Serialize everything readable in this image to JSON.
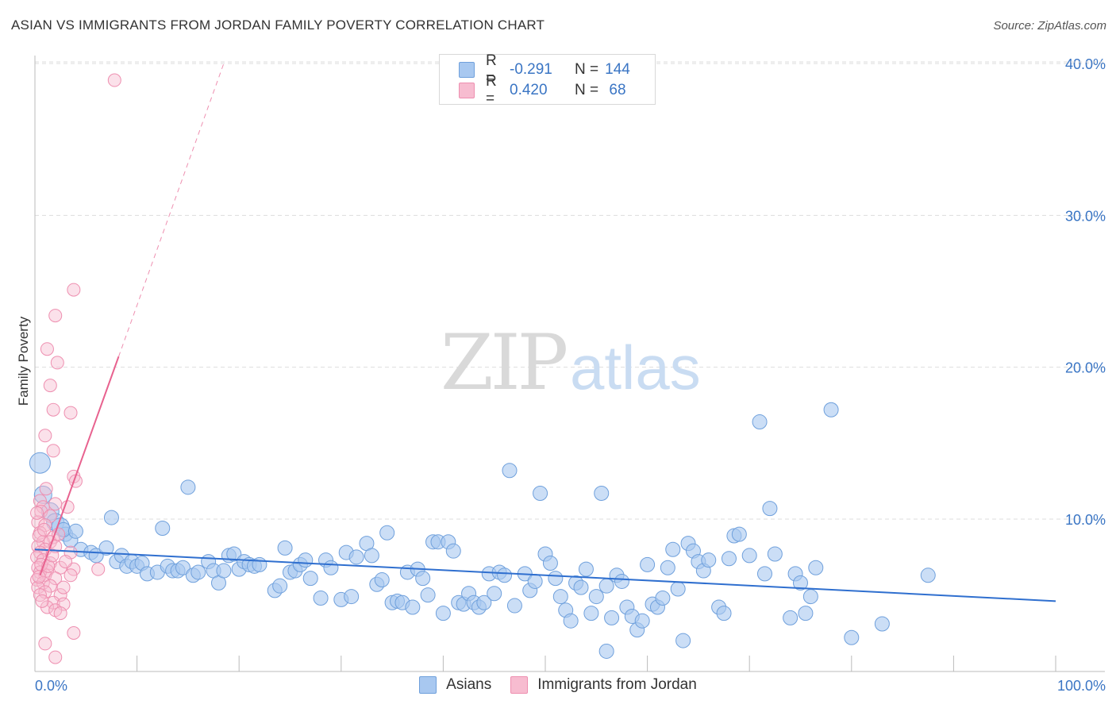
{
  "title": "ASIAN VS IMMIGRANTS FROM JORDAN FAMILY POVERTY CORRELATION CHART",
  "source": "Source: ZipAtlas.com",
  "watermark": {
    "zip": "ZIP",
    "atlas": "atlas"
  },
  "legend": {
    "rows": [
      {
        "r_label": "R =",
        "r_value": "-0.291",
        "n_label": "N =",
        "n_value": "144",
        "color": "#a8c8f0",
        "border": "#6fa0dc"
      },
      {
        "r_label": "R =",
        "r_value": "0.420",
        "n_label": "N =",
        "n_value": "68",
        "color": "#f7bcd0",
        "border": "#ee8fb0"
      }
    ]
  },
  "chart_data": {
    "type": "scatter",
    "title": "ASIAN VS IMMIGRANTS FROM JORDAN FAMILY POVERTY CORRELATION CHART",
    "xlabel": "",
    "ylabel": "Family Poverty",
    "xlim": [
      0,
      100
    ],
    "ylim": [
      0,
      42
    ],
    "x_tick_labels": [
      "0.0%",
      "100.0%"
    ],
    "y_ticks": [
      10,
      20,
      30,
      40
    ],
    "y_tick_labels": [
      "10.0%",
      "20.0%",
      "30.0%",
      "40.0%"
    ],
    "grid": "horizontal dashed",
    "legend_position": "top-center and bottom",
    "series": [
      {
        "name": "Asians",
        "color": "#6fa0dc",
        "fill": "#a8c8f0",
        "trend": {
          "x": [
            0,
            100
          ],
          "y": [
            8.0,
            4.6
          ]
        },
        "points": [
          [
            0.5,
            13.7
          ],
          [
            0.8,
            11.6
          ],
          [
            1.5,
            10.5
          ],
          [
            2.0,
            9.8
          ],
          [
            2.5,
            9.5
          ],
          [
            3.0,
            9.0
          ],
          [
            3.5,
            8.6
          ],
          [
            2.8,
            9.3
          ],
          [
            4.0,
            9.2
          ],
          [
            4.5,
            8.0
          ],
          [
            5.5,
            7.8
          ],
          [
            6.0,
            7.6
          ],
          [
            7.0,
            8.1
          ],
          [
            7.5,
            10.1
          ],
          [
            8.0,
            7.2
          ],
          [
            8.5,
            7.6
          ],
          [
            9.0,
            6.9
          ],
          [
            9.5,
            7.2
          ],
          [
            10.0,
            6.9
          ],
          [
            10.5,
            7.1
          ],
          [
            11.0,
            6.4
          ],
          [
            12.0,
            6.5
          ],
          [
            12.5,
            9.4
          ],
          [
            13.0,
            6.9
          ],
          [
            13.5,
            6.6
          ],
          [
            14.0,
            6.6
          ],
          [
            14.5,
            6.8
          ],
          [
            15.0,
            12.1
          ],
          [
            15.5,
            6.3
          ],
          [
            16.0,
            6.5
          ],
          [
            17.0,
            7.2
          ],
          [
            17.5,
            6.6
          ],
          [
            18.0,
            5.8
          ],
          [
            18.5,
            6.6
          ],
          [
            19.0,
            7.6
          ],
          [
            19.5,
            7.7
          ],
          [
            20.0,
            6.7
          ],
          [
            20.5,
            7.2
          ],
          [
            21.0,
            7.0
          ],
          [
            21.5,
            6.9
          ],
          [
            22.0,
            7.0
          ],
          [
            23.5,
            5.3
          ],
          [
            24.0,
            5.6
          ],
          [
            24.5,
            8.1
          ],
          [
            25.0,
            6.5
          ],
          [
            25.5,
            6.6
          ],
          [
            26.0,
            7.0
          ],
          [
            26.5,
            7.3
          ],
          [
            27.0,
            6.1
          ],
          [
            28.0,
            4.8
          ],
          [
            28.5,
            7.3
          ],
          [
            29.0,
            6.8
          ],
          [
            30.0,
            4.7
          ],
          [
            30.5,
            7.8
          ],
          [
            31.0,
            4.9
          ],
          [
            31.5,
            7.5
          ],
          [
            32.5,
            8.4
          ],
          [
            33.0,
            7.6
          ],
          [
            33.5,
            5.7
          ],
          [
            34.0,
            6.0
          ],
          [
            34.5,
            9.1
          ],
          [
            35.0,
            4.5
          ],
          [
            35.5,
            4.6
          ],
          [
            36.0,
            4.5
          ],
          [
            36.5,
            6.5
          ],
          [
            37.0,
            4.2
          ],
          [
            37.5,
            6.7
          ],
          [
            38.0,
            6.1
          ],
          [
            38.5,
            5.0
          ],
          [
            39.0,
            8.5
          ],
          [
            39.5,
            8.5
          ],
          [
            40.0,
            3.8
          ],
          [
            40.5,
            8.5
          ],
          [
            41.0,
            7.9
          ],
          [
            41.5,
            4.5
          ],
          [
            42.0,
            4.4
          ],
          [
            42.5,
            5.1
          ],
          [
            43.0,
            4.5
          ],
          [
            43.5,
            4.2
          ],
          [
            44.0,
            4.5
          ],
          [
            44.5,
            6.4
          ],
          [
            45.0,
            5.1
          ],
          [
            45.5,
            6.5
          ],
          [
            46.0,
            6.3
          ],
          [
            46.5,
            13.2
          ],
          [
            47.0,
            4.3
          ],
          [
            48.0,
            6.4
          ],
          [
            48.5,
            5.3
          ],
          [
            49.0,
            5.9
          ],
          [
            49.5,
            11.7
          ],
          [
            50.0,
            7.7
          ],
          [
            50.5,
            7.1
          ],
          [
            51.0,
            6.1
          ],
          [
            51.5,
            4.9
          ],
          [
            52.0,
            4.0
          ],
          [
            52.5,
            3.3
          ],
          [
            53.0,
            5.8
          ],
          [
            53.5,
            5.5
          ],
          [
            54.0,
            6.7
          ],
          [
            54.5,
            3.8
          ],
          [
            55.0,
            4.9
          ],
          [
            55.5,
            11.7
          ],
          [
            56.0,
            5.6
          ],
          [
            56.5,
            3.5
          ],
          [
            57.0,
            6.3
          ],
          [
            57.5,
            5.9
          ],
          [
            58.0,
            4.2
          ],
          [
            58.5,
            3.6
          ],
          [
            59.0,
            2.7
          ],
          [
            59.5,
            3.3
          ],
          [
            60.0,
            7.0
          ],
          [
            60.5,
            4.4
          ],
          [
            61.0,
            4.2
          ],
          [
            61.5,
            4.8
          ],
          [
            62.0,
            6.8
          ],
          [
            62.5,
            8.0
          ],
          [
            63.0,
            5.4
          ],
          [
            63.5,
            2.0
          ],
          [
            64.0,
            8.4
          ],
          [
            64.5,
            7.9
          ],
          [
            65.0,
            7.2
          ],
          [
            65.5,
            6.6
          ],
          [
            66.0,
            7.3
          ],
          [
            67.0,
            4.2
          ],
          [
            67.5,
            3.8
          ],
          [
            68.0,
            7.4
          ],
          [
            68.5,
            8.9
          ],
          [
            69.0,
            9.0
          ],
          [
            70.0,
            7.6
          ],
          [
            71.0,
            16.4
          ],
          [
            71.5,
            6.4
          ],
          [
            72.0,
            10.7
          ],
          [
            72.5,
            7.7
          ],
          [
            74.0,
            3.5
          ],
          [
            74.5,
            6.4
          ],
          [
            75.0,
            5.8
          ],
          [
            75.5,
            3.8
          ],
          [
            76.0,
            4.9
          ],
          [
            76.5,
            6.8
          ],
          [
            78.0,
            17.2
          ],
          [
            80.0,
            2.2
          ],
          [
            83.0,
            3.1
          ],
          [
            87.5,
            6.3
          ],
          [
            56.0,
            1.3
          ]
        ]
      },
      {
        "name": "Immigrants from Jordan",
        "color": "#ee8fb0",
        "fill": "#f7bcd0",
        "trend": {
          "x": [
            0.5,
            8.2
          ],
          "y": [
            6.3,
            20.7
          ]
        },
        "trend_extension": {
          "x": [
            8.2,
            18.5
          ],
          "y": [
            20.7,
            40.0
          ]
        },
        "points": [
          [
            7.8,
            38.9
          ],
          [
            3.8,
            25.1
          ],
          [
            2.0,
            23.4
          ],
          [
            1.2,
            21.2
          ],
          [
            2.2,
            20.3
          ],
          [
            1.5,
            18.8
          ],
          [
            1.8,
            17.2
          ],
          [
            3.5,
            17.0
          ],
          [
            1.0,
            15.5
          ],
          [
            1.8,
            14.5
          ],
          [
            3.8,
            12.8
          ],
          [
            4.0,
            12.5
          ],
          [
            0.5,
            11.2
          ],
          [
            0.8,
            10.8
          ],
          [
            2.0,
            11.0
          ],
          [
            3.2,
            10.8
          ],
          [
            0.6,
            10.5
          ],
          [
            1.5,
            10.2
          ],
          [
            0.3,
            9.8
          ],
          [
            1.0,
            9.6
          ],
          [
            0.5,
            9.1
          ],
          [
            1.8,
            8.8
          ],
          [
            0.8,
            8.5
          ],
          [
            1.5,
            8.5
          ],
          [
            0.3,
            8.2
          ],
          [
            1.0,
            8.0
          ],
          [
            2.0,
            8.2
          ],
          [
            0.5,
            7.8
          ],
          [
            3.5,
            7.8
          ],
          [
            0.2,
            7.5
          ],
          [
            0.8,
            7.3
          ],
          [
            1.5,
            7.1
          ],
          [
            0.3,
            6.8
          ],
          [
            1.2,
            6.6
          ],
          [
            2.5,
            6.8
          ],
          [
            3.8,
            6.7
          ],
          [
            6.2,
            6.7
          ],
          [
            0.5,
            6.5
          ],
          [
            1.0,
            6.3
          ],
          [
            2.0,
            6.1
          ],
          [
            3.5,
            6.3
          ],
          [
            0.2,
            6.0
          ],
          [
            0.8,
            5.8
          ],
          [
            1.5,
            5.6
          ],
          [
            0.3,
            5.5
          ],
          [
            1.0,
            5.2
          ],
          [
            2.5,
            5.0
          ],
          [
            0.5,
            5.0
          ],
          [
            1.8,
            4.5
          ],
          [
            2.8,
            4.4
          ],
          [
            1.2,
            4.2
          ],
          [
            2.0,
            4.0
          ],
          [
            2.5,
            3.8
          ],
          [
            3.8,
            2.5
          ],
          [
            1.0,
            1.8
          ],
          [
            2.0,
            0.9
          ],
          [
            0.6,
            7.0
          ],
          [
            1.3,
            6.9
          ],
          [
            0.4,
            8.9
          ],
          [
            2.3,
            9.0
          ],
          [
            0.9,
            9.3
          ],
          [
            1.7,
            7.6
          ],
          [
            0.7,
            4.6
          ],
          [
            2.8,
            5.5
          ],
          [
            0.2,
            10.4
          ],
          [
            1.1,
            12.0
          ],
          [
            3.0,
            7.2
          ],
          [
            0.4,
            6.2
          ]
        ]
      }
    ]
  }
}
